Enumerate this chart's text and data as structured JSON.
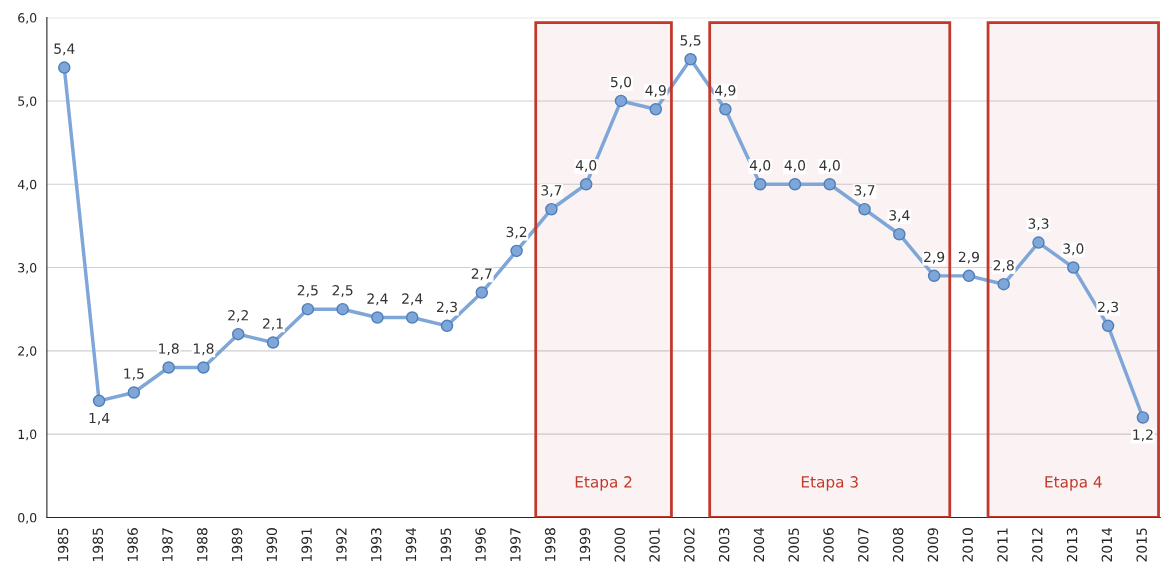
{
  "chart_data": {
    "type": "line",
    "categories": [
      "1985",
      "1985",
      "1986",
      "1987",
      "1988",
      "1989",
      "1990",
      "1991",
      "1992",
      "1993",
      "1994",
      "1995",
      "1996",
      "1997",
      "1998",
      "1999",
      "2000",
      "2001",
      "2002",
      "2003",
      "2004",
      "2005",
      "2006",
      "2007",
      "2008",
      "2009",
      "2010",
      "2011",
      "2012",
      "2013",
      "2014",
      "2015"
    ],
    "series": [
      {
        "color": "#7ea6d8",
        "values": [
          5.4,
          1.4,
          1.5,
          1.8,
          1.8,
          2.2,
          2.1,
          2.5,
          2.5,
          2.4,
          2.4,
          2.3,
          2.7,
          3.2,
          3.7,
          4.0,
          5.0,
          4.9,
          5.5,
          4.9,
          4.0,
          4.0,
          4.0,
          3.7,
          3.4,
          2.9,
          2.9,
          2.8,
          3.3,
          3.0,
          2.3,
          1.2
        ],
        "value_labels": [
          "5,4",
          "1,4",
          "1,5",
          "1,8",
          "1,8",
          "2,2",
          "2,1",
          "2,5",
          "2,5",
          "2,4",
          "2,4",
          "2,3",
          "2,7",
          "3,2",
          "3,7",
          "4,0",
          "5,0",
          "4,9",
          "5,5",
          "4,9",
          "4,0",
          "4,0",
          "4,0",
          "3,7",
          "3,4",
          "2,9",
          "2,9",
          "2,8",
          "3,3",
          "3,0",
          "2,3",
          "1,2"
        ]
      }
    ],
    "ylim": [
      0,
      6
    ],
    "yticks": [
      {
        "value": 0,
        "label": "0,0"
      },
      {
        "value": 1,
        "label": "1,0"
      },
      {
        "value": 2,
        "label": "2,0"
      },
      {
        "value": 3,
        "label": "3,0"
      },
      {
        "value": 4,
        "label": "4,0"
      },
      {
        "value": 5,
        "label": "5,0"
      },
      {
        "value": 6,
        "label": "6,0"
      }
    ],
    "grid": "y",
    "marker": "circle",
    "line_style": "solid",
    "bands": [
      {
        "axis": "x",
        "from": "1998",
        "to": "2001",
        "label": "Etapa 2",
        "color": "#c0392b"
      },
      {
        "axis": "x",
        "from": "2003",
        "to": "2009",
        "label": "Etapa 3",
        "color": "#c0392b"
      },
      {
        "axis": "x",
        "from": "2011",
        "to": "2015",
        "label": "Etapa 4",
        "color": "#c0392b"
      }
    ]
  }
}
